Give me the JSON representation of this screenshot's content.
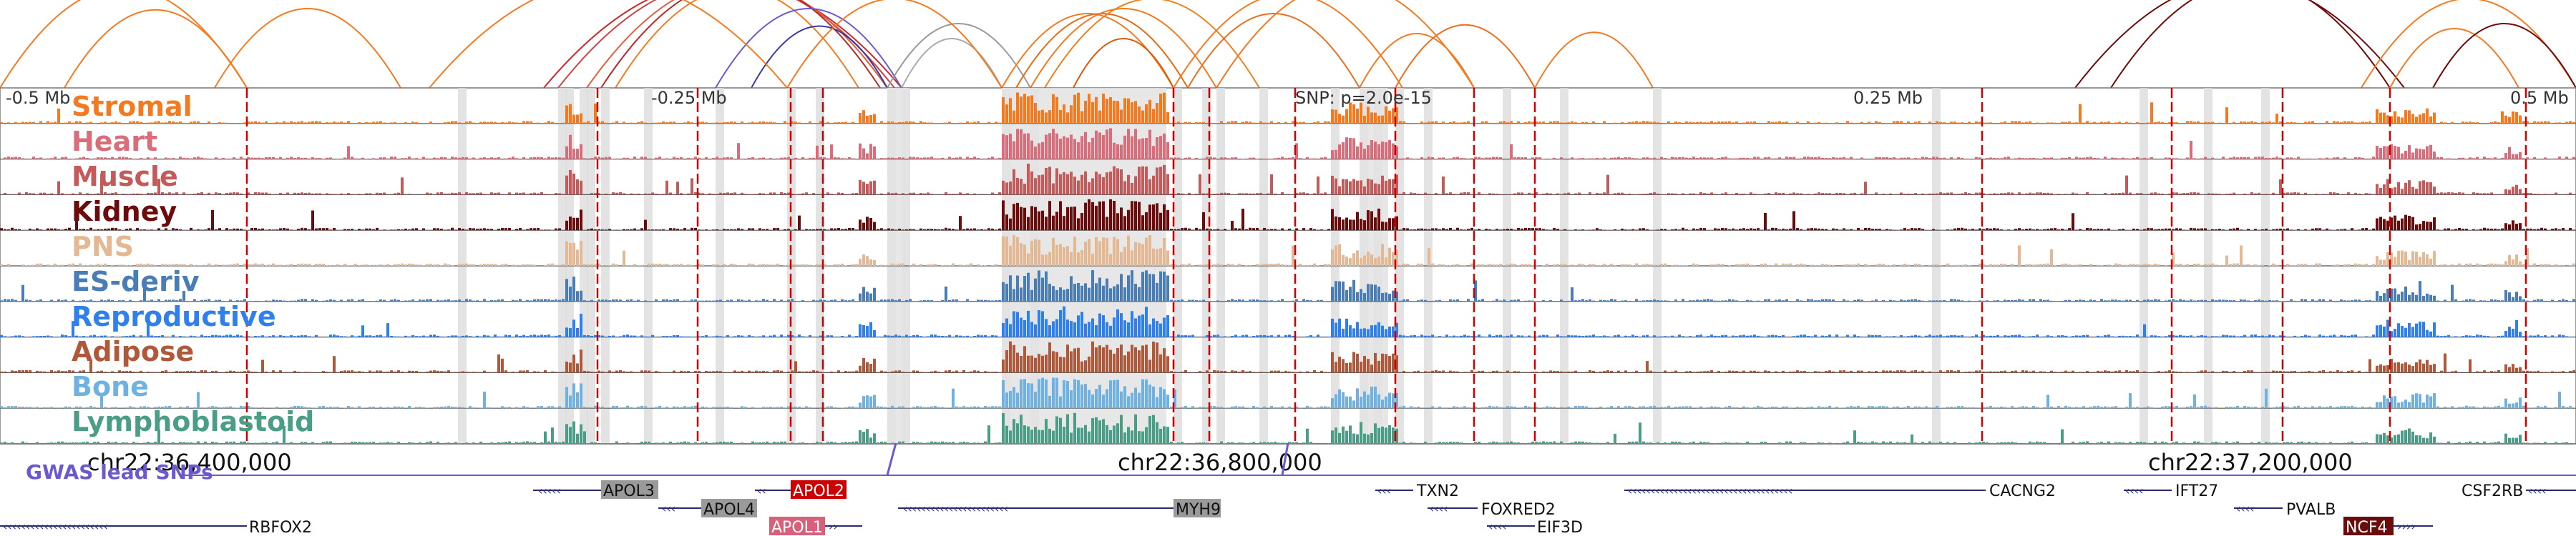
{
  "colors": {
    "stromal": "#f47a20",
    "heart": "#d96d7a",
    "muscle": "#c45a5a",
    "kidney": "#6b0b0b",
    "pns": "#e3b892",
    "es_deriv": "#4a7db5",
    "reproductive": "#2f80ed",
    "adipose": "#b0583a",
    "bone": "#6fb1e0",
    "lymphoblastoid": "#4a9e86",
    "gwas": "#6a5acd",
    "highlight_red": "#cc0000",
    "highlight_pink": "#d9607a",
    "gene_gray": "#9a9a9a",
    "gene_dark": "#6b0b0b",
    "gene_line": "#2a2a70"
  },
  "axis": {
    "top_ticks": [
      "-0.5 Mb",
      "-0.25 Mb",
      "SNP: p=2.0e-15",
      "0.25 Mb",
      "0.5 Mb"
    ],
    "bottom_ticks": [
      "chr22:36,400,000",
      "chr22:36,800,000",
      "chr22:37,200,000"
    ]
  },
  "tracks": [
    {
      "label": "Stromal",
      "color": "#f47a20"
    },
    {
      "label": "Heart",
      "color": "#d96d7a"
    },
    {
      "label": "Muscle",
      "color": "#c45a5a"
    },
    {
      "label": "Kidney",
      "color": "#6b0b0b"
    },
    {
      "label": "PNS",
      "color": "#e3b892"
    },
    {
      "label": "ES-deriv",
      "color": "#4a7db5"
    },
    {
      "label": "Reproductive",
      "color": "#2f80ed"
    },
    {
      "label": "Adipose",
      "color": "#b0583a"
    },
    {
      "label": "Bone",
      "color": "#6fb1e0"
    },
    {
      "label": "Lymphoblastoid",
      "color": "#4a9e86"
    }
  ],
  "gwas_label": "GWAS lead SNPs",
  "genes": [
    {
      "name": "APOL3",
      "style": "gray"
    },
    {
      "name": "APOL2",
      "style": "red"
    },
    {
      "name": "APOL4",
      "style": "gray"
    },
    {
      "name": "APOL1",
      "style": "pink"
    },
    {
      "name": "MYH9",
      "style": "gray"
    },
    {
      "name": "TXN2",
      "style": "plain"
    },
    {
      "name": "FOXRED2",
      "style": "plain"
    },
    {
      "name": "EIF3D",
      "style": "plain"
    },
    {
      "name": "CACNG2",
      "style": "plain"
    },
    {
      "name": "IFT27",
      "style": "plain"
    },
    {
      "name": "PVALB",
      "style": "plain"
    },
    {
      "name": "NCF4",
      "style": "dark"
    },
    {
      "name": "CSF2RB",
      "style": "plain"
    },
    {
      "name": "RBFOX2",
      "style": "plain"
    }
  ]
}
